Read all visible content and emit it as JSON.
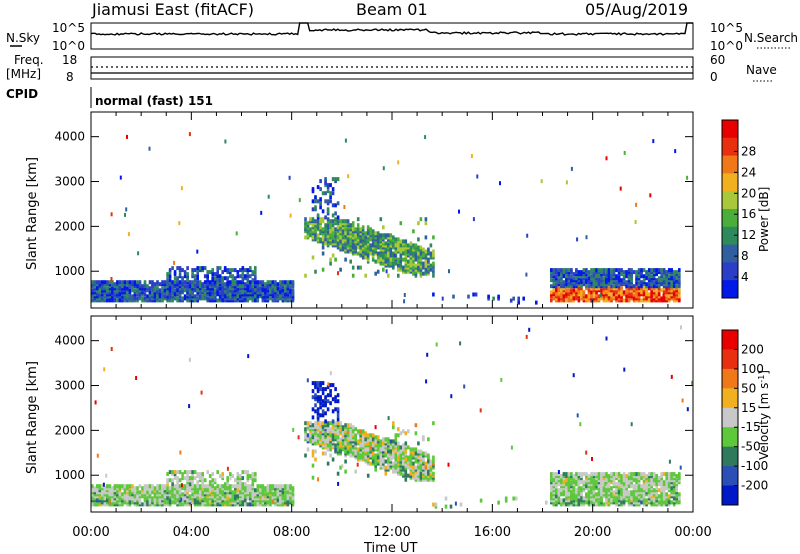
{
  "header": {
    "station": "Jiamusi East (fitACF)",
    "beam": "Beam 01",
    "date": "05/Aug/2019"
  },
  "top_panels": {
    "nsky_label": "N.Sky",
    "nsearch_label": "N.Search",
    "nsky_ticks": [
      "10^5",
      "10^0"
    ],
    "freq_label_1": "Freq.",
    "freq_label_2": "[MHz]",
    "freq_ticks": [
      "18",
      "8"
    ],
    "nave_ticks": [
      "60",
      "0"
    ],
    "nave_label": "Nave",
    "cpid_label": "CPID",
    "cpid_text": "normal (fast) 151"
  },
  "chart_data": [
    {
      "type": "heatmap",
      "name": "power",
      "ylabel": "Slant Range [km]",
      "xlabel": "",
      "ylim": [
        180,
        4550
      ],
      "xlim_hours": [
        0,
        24
      ],
      "y_ticks": [
        "1000",
        "2000",
        "3000",
        "4000"
      ],
      "colorbar_label": "Power [dB]",
      "colorbar_ticks": [
        "4",
        "8",
        "12",
        "16",
        "20",
        "24",
        "28"
      ],
      "colors": [
        "#0018e8",
        "#2a3ec8",
        "#2f5fa0",
        "#2e8a5c",
        "#4cae3a",
        "#a8c83a",
        "#f0b020",
        "#f07818",
        "#e83010",
        "#e80000"
      ]
    },
    {
      "type": "heatmap",
      "name": "velocity",
      "ylabel": "Slant Range [km]",
      "xlabel": "Time UT",
      "ylim": [
        180,
        4550
      ],
      "xlim_hours": [
        0,
        24
      ],
      "y_ticks": [
        "1000",
        "2000",
        "3000",
        "4000"
      ],
      "x_ticks": [
        "00:00",
        "04:00",
        "08:00",
        "12:00",
        "16:00",
        "20:00",
        "00:00"
      ],
      "colorbar_label": "Velocity [m s",
      "colorbar_label_sup": "-1",
      "colorbar_label_end": "]",
      "colorbar_ticks": [
        "200",
        "100",
        "50",
        "15",
        "-15",
        "-50",
        "-100",
        "-200"
      ],
      "colors": [
        "#0018c8",
        "#2a50b8",
        "#2f7a5c",
        "#5cc83a",
        "#c8c8c8",
        "#f0b020",
        "#f07818",
        "#e83010",
        "#e80000"
      ]
    }
  ]
}
